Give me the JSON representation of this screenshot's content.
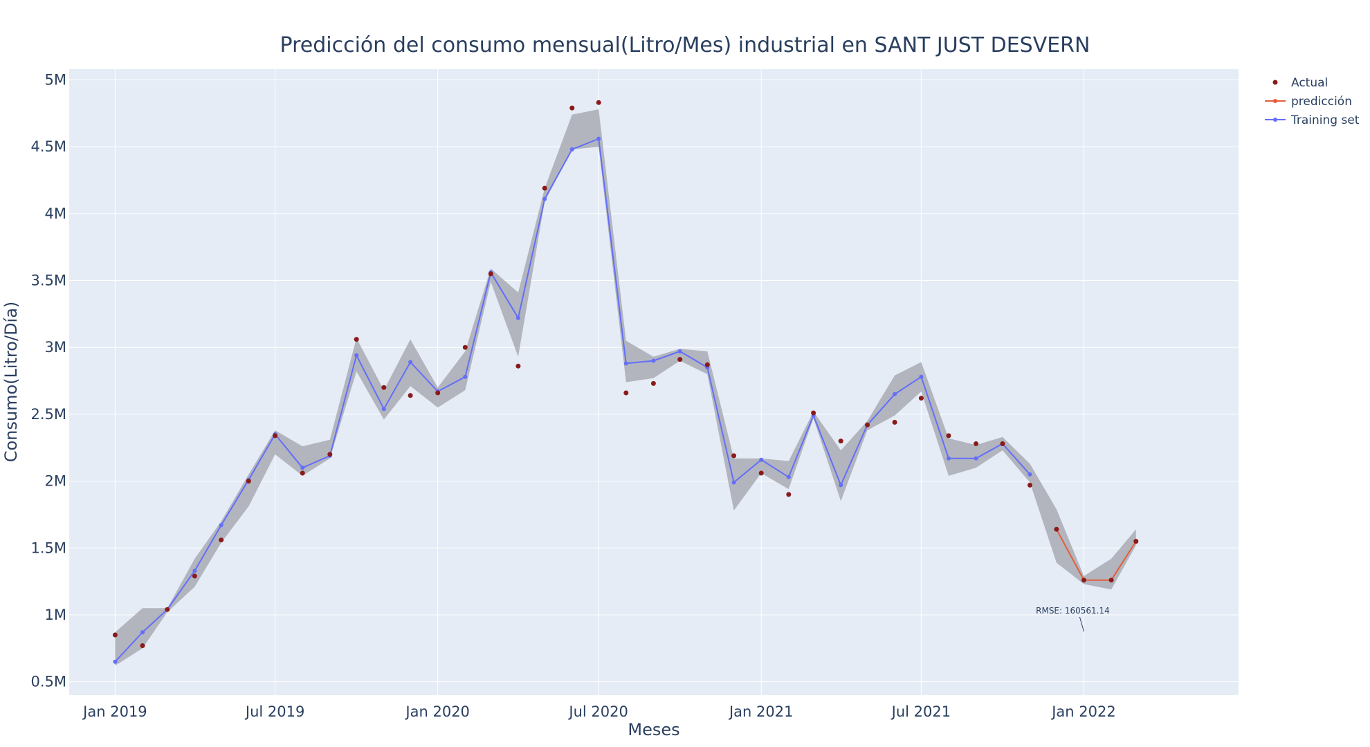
{
  "chart_data": {
    "type": "line",
    "title": "Predicción del consumo mensual(Litro/Mes) industrial en SANT JUST DESVERN",
    "xlabel": "Meses",
    "ylabel": "Consumo(Litro/Día)",
    "x_ticks": [
      "Jan 2019",
      "Jul 2019",
      "Jan 2020",
      "Jul 2020",
      "Jan 2021",
      "Jul 2021",
      "Jan 2022"
    ],
    "y_ticks": [
      "0.5M",
      "1M",
      "1.5M",
      "2M",
      "2.5M",
      "3M",
      "3.5M",
      "4M",
      "4.5M",
      "5M"
    ],
    "y_tick_values": [
      500000,
      1000000,
      1500000,
      2000000,
      2500000,
      3000000,
      3500000,
      4000000,
      4500000,
      5000000
    ],
    "x_tick_dates": [
      "2019-01-01",
      "2019-07-01",
      "2020-01-01",
      "2020-07-01",
      "2021-01-01",
      "2021-07-01",
      "2022-01-01"
    ],
    "xlim": [
      "2018-11-10",
      "2022-06-25"
    ],
    "ylim": [
      400000,
      5080000
    ],
    "grid": true,
    "legend_position": "top-right",
    "series": [
      {
        "name": "Actual",
        "mode": "markers",
        "color": "#8b1a1a",
        "x": [
          "2019-01-01",
          "2019-02-01",
          "2019-03-01",
          "2019-04-01",
          "2019-05-01",
          "2019-06-01",
          "2019-07-01",
          "2019-08-01",
          "2019-09-01",
          "2019-10-01",
          "2019-11-01",
          "2019-12-01",
          "2020-01-01",
          "2020-02-01",
          "2020-03-01",
          "2020-04-01",
          "2020-05-01",
          "2020-06-01",
          "2020-07-01",
          "2020-08-01",
          "2020-09-01",
          "2020-10-01",
          "2020-11-01",
          "2020-12-01",
          "2021-01-01",
          "2021-02-01",
          "2021-03-01",
          "2021-04-01",
          "2021-05-01",
          "2021-06-01",
          "2021-07-01",
          "2021-08-01",
          "2021-09-01",
          "2021-10-01",
          "2021-11-01",
          "2021-12-01",
          "2022-01-01",
          "2022-02-01",
          "2022-03-01"
        ],
        "values": [
          850000,
          770000,
          1040000,
          1290000,
          1560000,
          2000000,
          2340000,
          2060000,
          2200000,
          3060000,
          2700000,
          2640000,
          2660000,
          3000000,
          3550000,
          2860000,
          4190000,
          4790000,
          4830000,
          2660000,
          2730000,
          2910000,
          2870000,
          2190000,
          2060000,
          1900000,
          2510000,
          2300000,
          2420000,
          2440000,
          2620000,
          2340000,
          2280000,
          2280000,
          1970000,
          1640000,
          1260000,
          1260000,
          1550000
        ]
      },
      {
        "name": "predicción",
        "mode": "lines+markers",
        "color": "#e45d3a",
        "x": [
          "2021-12-01",
          "2022-01-01",
          "2022-02-01",
          "2022-03-01"
        ],
        "values": [
          1640000,
          1260000,
          1260000,
          1550000
        ]
      },
      {
        "name": "Training set",
        "mode": "lines+markers",
        "color": "#636efa",
        "x": [
          "2019-01-01",
          "2019-02-01",
          "2019-03-01",
          "2019-04-01",
          "2019-05-01",
          "2019-06-01",
          "2019-07-01",
          "2019-08-01",
          "2019-09-01",
          "2019-10-01",
          "2019-11-01",
          "2019-12-01",
          "2020-01-01",
          "2020-02-01",
          "2020-03-01",
          "2020-04-01",
          "2020-05-01",
          "2020-06-01",
          "2020-07-01",
          "2020-08-01",
          "2020-09-01",
          "2020-10-01",
          "2020-11-01",
          "2020-12-01",
          "2021-01-01",
          "2021-02-01",
          "2021-03-01",
          "2021-04-01",
          "2021-05-01",
          "2021-06-01",
          "2021-07-01",
          "2021-08-01",
          "2021-09-01",
          "2021-10-01",
          "2021-11-01"
        ],
        "values": [
          650000,
          870000,
          1040000,
          1330000,
          1670000,
          2010000,
          2350000,
          2100000,
          2190000,
          2940000,
          2540000,
          2890000,
          2670000,
          2780000,
          3560000,
          3220000,
          4110000,
          4480000,
          4560000,
          2880000,
          2900000,
          2970000,
          2850000,
          1990000,
          2160000,
          2030000,
          2490000,
          1970000,
          2420000,
          2650000,
          2780000,
          2170000,
          2170000,
          2280000,
          2050000
        ]
      }
    ],
    "confidence_band": {
      "color": "#a9acb3",
      "x": [
        "2019-01-01",
        "2019-02-01",
        "2019-03-01",
        "2019-04-01",
        "2019-05-01",
        "2019-06-01",
        "2019-07-01",
        "2019-08-01",
        "2019-09-01",
        "2019-10-01",
        "2019-11-01",
        "2019-12-01",
        "2020-01-01",
        "2020-02-01",
        "2020-03-01",
        "2020-04-01",
        "2020-05-01",
        "2020-06-01",
        "2020-07-01",
        "2020-08-01",
        "2020-09-01",
        "2020-10-01",
        "2020-11-01",
        "2020-12-01",
        "2021-01-01",
        "2021-02-01",
        "2021-03-01",
        "2021-04-01",
        "2021-05-01",
        "2021-06-01",
        "2021-07-01",
        "2021-08-01",
        "2021-09-01",
        "2021-10-01",
        "2021-11-01",
        "2021-12-01",
        "2022-01-01",
        "2022-02-01",
        "2022-03-01"
      ],
      "upper": [
        870000,
        1050000,
        1050000,
        1420000,
        1700000,
        2050000,
        2380000,
        2260000,
        2310000,
        3070000,
        2680000,
        3060000,
        2700000,
        2970000,
        3590000,
        3410000,
        4190000,
        4740000,
        4780000,
        3050000,
        2930000,
        2990000,
        2970000,
        2170000,
        2170000,
        2150000,
        2520000,
        2230000,
        2450000,
        2790000,
        2890000,
        2320000,
        2270000,
        2330000,
        2130000,
        1790000,
        1290000,
        1420000,
        1640000
      ],
      "lower": [
        620000,
        750000,
        1020000,
        1210000,
        1540000,
        1810000,
        2200000,
        2040000,
        2170000,
        2820000,
        2460000,
        2710000,
        2550000,
        2680000,
        3490000,
        2930000,
        4090000,
        4480000,
        4500000,
        2740000,
        2770000,
        2900000,
        2800000,
        1780000,
        2060000,
        1940000,
        2470000,
        1850000,
        2380000,
        2490000,
        2670000,
        2040000,
        2100000,
        2230000,
        1990000,
        1390000,
        1230000,
        1190000,
        1520000
      ]
    },
    "annotation": {
      "text": "RMSE: 160561.14",
      "x": "2022-01-01",
      "y": 850000
    }
  }
}
